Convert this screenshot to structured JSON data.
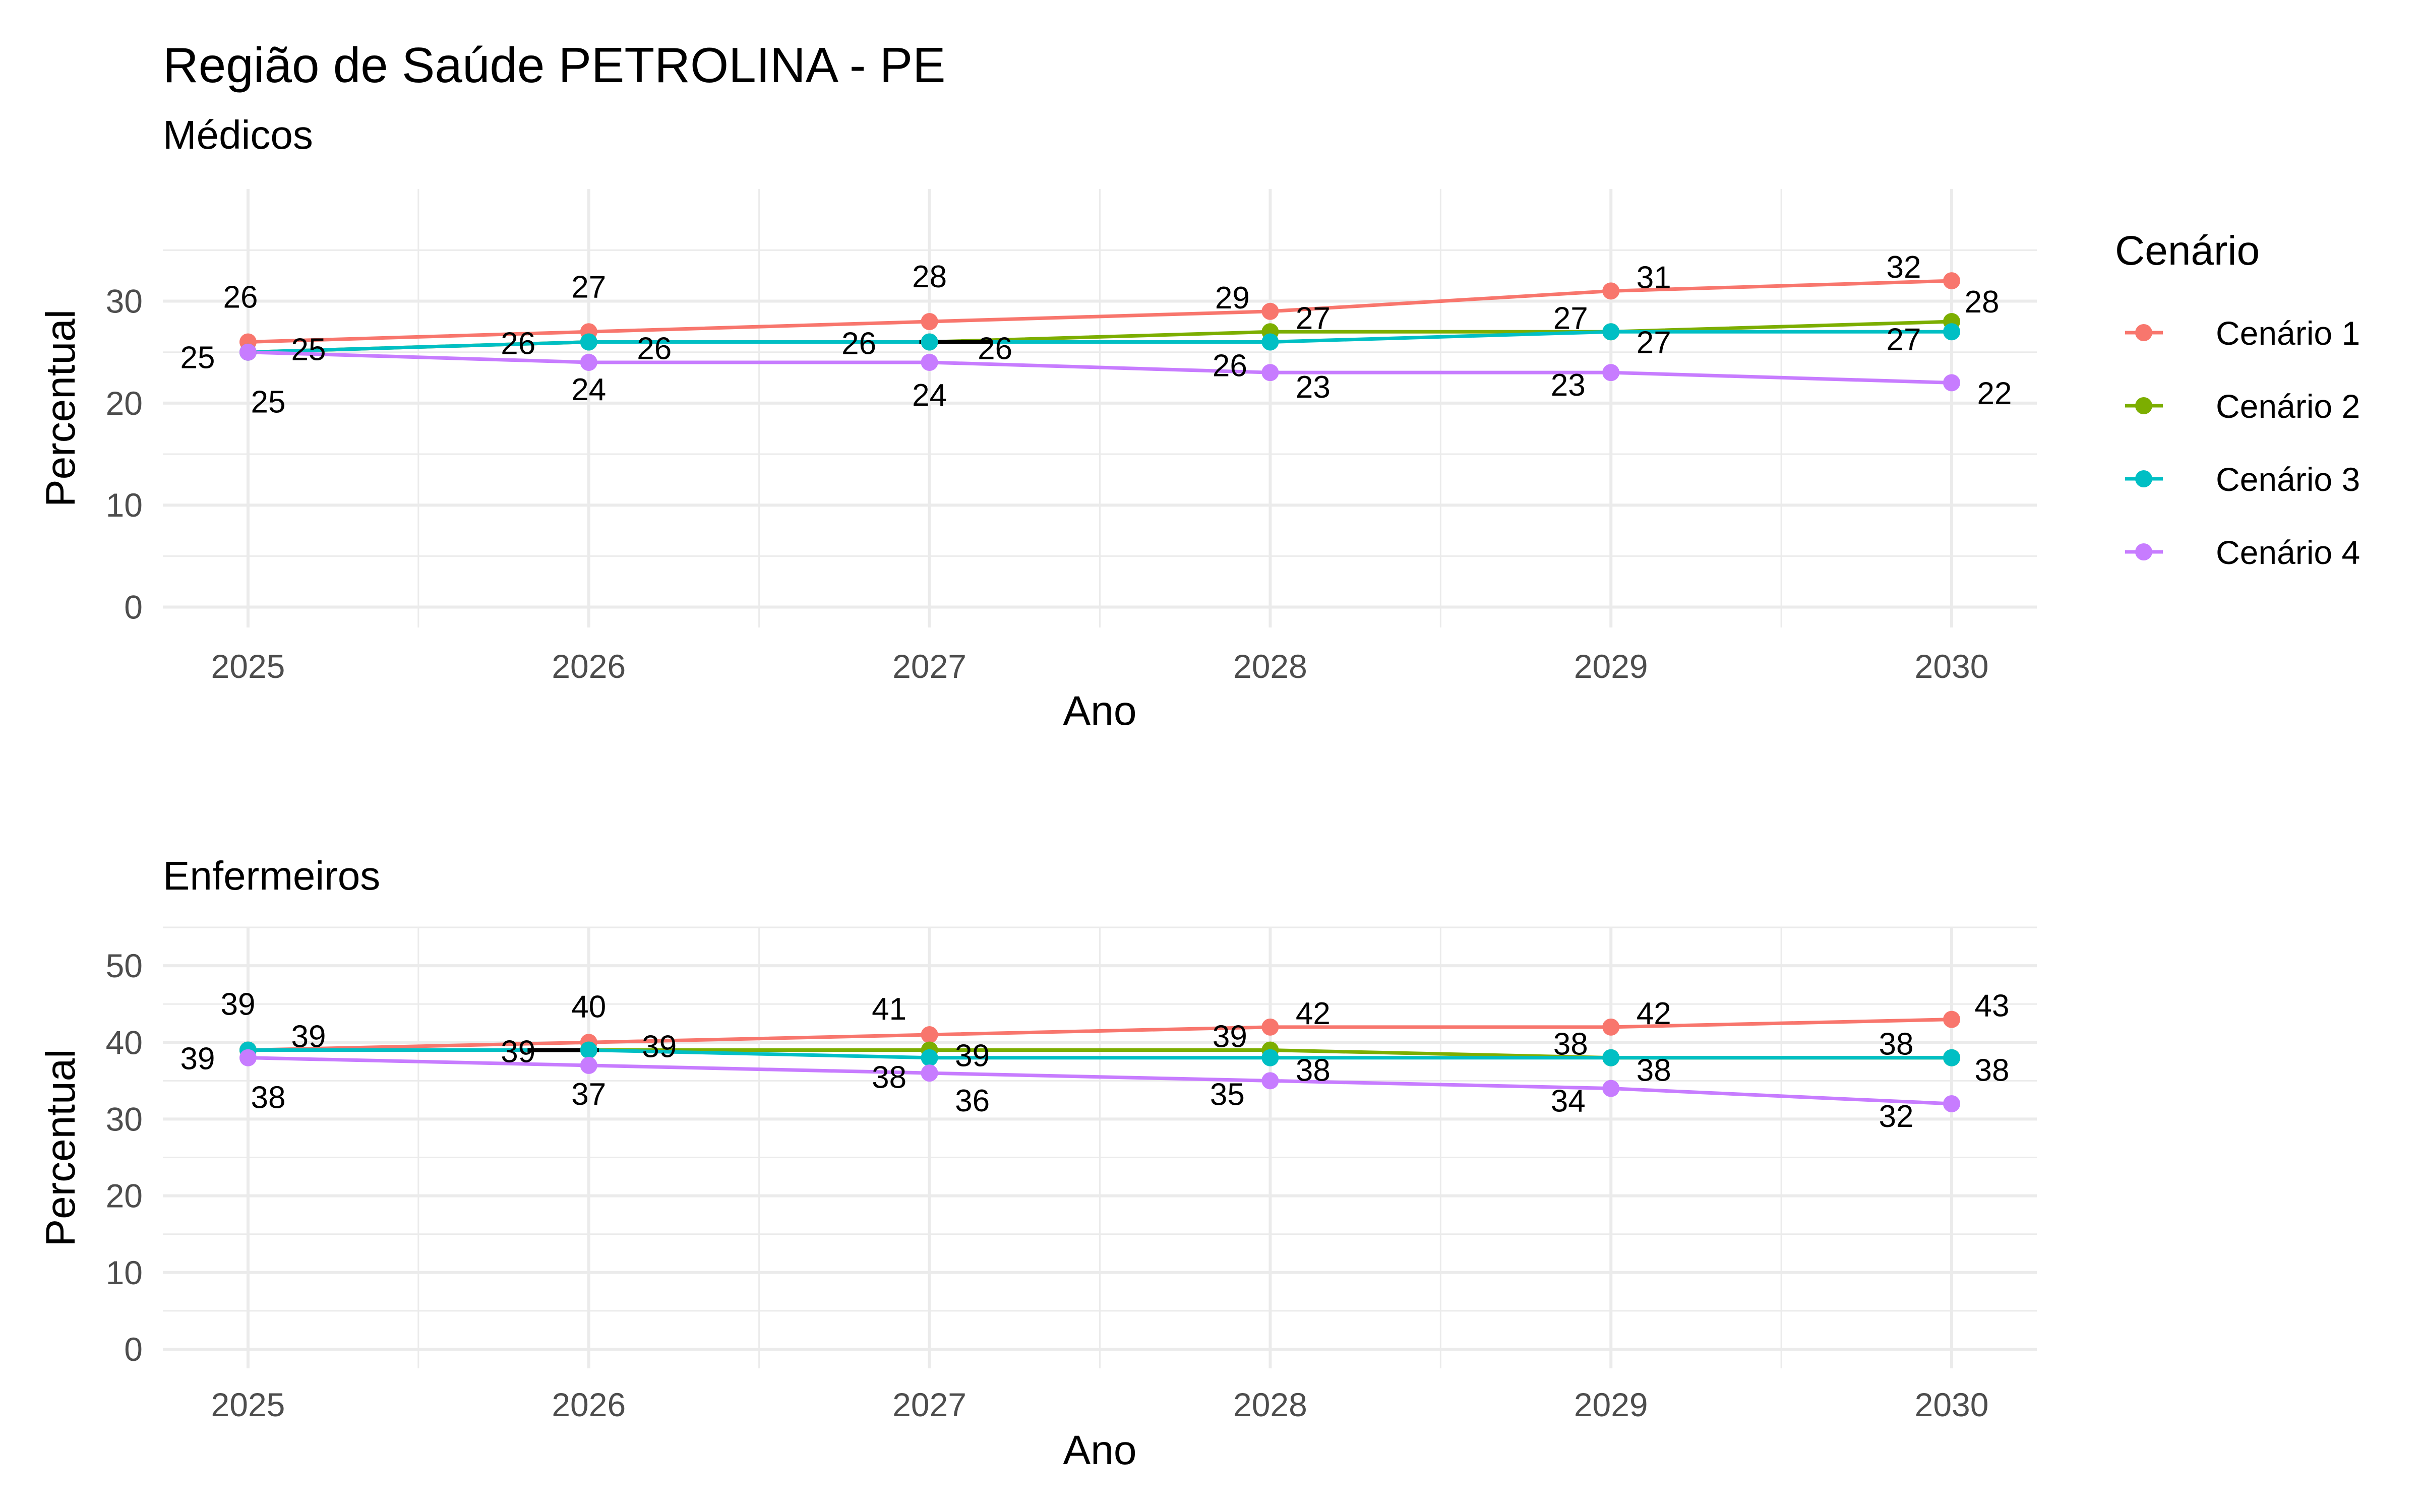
{
  "title": "Região de Saúde PETROLINA - PE",
  "legend": {
    "title": "Cenário",
    "entries": [
      "Cenário 1",
      "Cenário 2",
      "Cenário 3",
      "Cenário 4"
    ]
  },
  "colors": {
    "Cenário 1": "#F8766D",
    "Cenário 2": "#7CAE00",
    "Cenário 3": "#00BFC4",
    "Cenário 4": "#C77CFF",
    "highlight_segment": "#000000"
  },
  "chart_data": [
    {
      "type": "line",
      "subtitle": "Médicos",
      "xlabel": "Ano",
      "ylabel": "Percentual",
      "x": [
        2025,
        2026,
        2027,
        2028,
        2029,
        2030
      ],
      "ylim": [
        -2,
        41
      ],
      "yticks": [
        0,
        10,
        20,
        30
      ],
      "grid": true,
      "legend_position": "right",
      "series": [
        {
          "name": "Cenário 1",
          "values": [
            26,
            27,
            28,
            29,
            31,
            32
          ]
        },
        {
          "name": "Cenário 2",
          "values": [
            25,
            26,
            26,
            27,
            27,
            28
          ]
        },
        {
          "name": "Cenário 3",
          "values": [
            25,
            26,
            26,
            26,
            27,
            27
          ]
        },
        {
          "name": "Cenário 4",
          "values": [
            25,
            24,
            24,
            23,
            23,
            22
          ]
        }
      ],
      "black_segment": {
        "x": [
          2027,
          2027.15
        ],
        "value": 26
      }
    },
    {
      "type": "line",
      "subtitle": "Enfermeiros",
      "xlabel": "Ano",
      "ylabel": "Percentual",
      "x": [
        2025,
        2026,
        2027,
        2028,
        2029,
        2030
      ],
      "ylim": [
        -2.5,
        55
      ],
      "yticks": [
        0,
        10,
        20,
        30,
        40,
        50
      ],
      "grid": true,
      "series": [
        {
          "name": "Cenário 1",
          "values": [
            39,
            40,
            41,
            42,
            42,
            43
          ]
        },
        {
          "name": "Cenário 2",
          "values": [
            39,
            39,
            39,
            39,
            38,
            38
          ]
        },
        {
          "name": "Cenário 3",
          "values": [
            39,
            39,
            38,
            38,
            38,
            38
          ]
        },
        {
          "name": "Cenário 4",
          "values": [
            38,
            37,
            36,
            35,
            34,
            32
          ]
        }
      ],
      "black_segment": {
        "x": [
          2025.85,
          2026
        ],
        "value": 39
      }
    }
  ]
}
